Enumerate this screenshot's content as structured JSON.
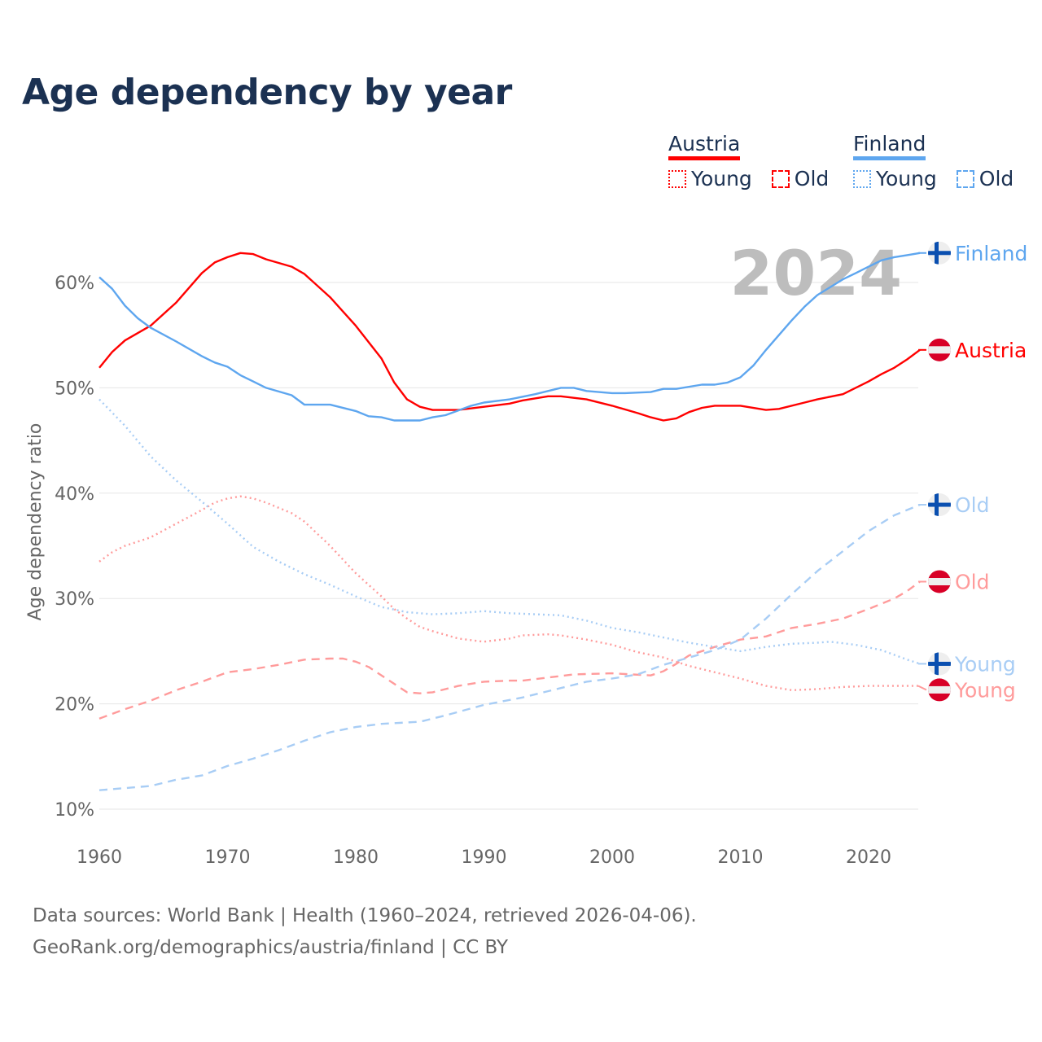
{
  "chart_data": {
    "type": "line",
    "title": "Age dependency by year",
    "xlabel": "",
    "ylabel": "Age dependency ratio",
    "xlim": [
      1960,
      2024
    ],
    "ylim": [
      10,
      62.5
    ],
    "x_ticks": [
      "1960",
      "1970",
      "1980",
      "1990",
      "2000",
      "2010",
      "2020"
    ],
    "y_ticks": [
      "10%",
      "20%",
      "30%",
      "40%",
      "50%",
      "60%"
    ],
    "grid": true,
    "year_watermark": "2024",
    "legend": {
      "placement": "top-right",
      "groups": [
        {
          "country": "Austria",
          "items": [
            "Young",
            "Old"
          ]
        },
        {
          "country": "Finland",
          "items": [
            "Young",
            "Old"
          ]
        }
      ]
    },
    "colors": {
      "austria": "#ff0000",
      "austria_light": "#ff9b9b",
      "finland": "#5ea6ef",
      "finland_light": "#a8cdf5"
    },
    "series": [
      {
        "name": "Austria",
        "country": "austria",
        "style": "solid",
        "end_label": "Austria",
        "x": [
          1960,
          1961,
          1962,
          1964,
          1966,
          1968,
          1969,
          1970,
          1971,
          1972,
          1973,
          1975,
          1976,
          1978,
          1980,
          1982,
          1983,
          1984,
          1985,
          1986,
          1988,
          1990,
          1992,
          1993,
          1995,
          1996,
          1998,
          2000,
          2002,
          2003,
          2004,
          2005,
          2006,
          2007,
          2008,
          2010,
          2012,
          2013,
          2015,
          2016,
          2018,
          2020,
          2021,
          2022,
          2023,
          2024
        ],
        "values": [
          51.9,
          53.4,
          54.5,
          55.9,
          58.1,
          60.9,
          61.9,
          62.4,
          62.8,
          62.7,
          62.2,
          61.5,
          60.8,
          58.6,
          55.9,
          52.8,
          50.5,
          48.9,
          48.2,
          47.9,
          47.9,
          48.2,
          48.5,
          48.8,
          49.2,
          49.2,
          48.9,
          48.3,
          47.6,
          47.2,
          46.9,
          47.1,
          47.7,
          48.1,
          48.3,
          48.3,
          47.9,
          48.0,
          48.6,
          48.9,
          49.4,
          50.6,
          51.3,
          51.9,
          52.7,
          53.6
        ]
      },
      {
        "name": "Finland",
        "country": "finland",
        "style": "solid",
        "end_label": "Finland",
        "x": [
          1960,
          1961,
          1962,
          1963,
          1964,
          1966,
          1968,
          1969,
          1970,
          1971,
          1972,
          1973,
          1975,
          1976,
          1978,
          1980,
          1981,
          1982,
          1983,
          1985,
          1986,
          1987,
          1989,
          1990,
          1992,
          1994,
          1996,
          1997,
          1998,
          2000,
          2001,
          2003,
          2004,
          2005,
          2007,
          2008,
          2009,
          2010,
          2011,
          2012,
          2014,
          2015,
          2016,
          2018,
          2019,
          2020,
          2021,
          2022,
          2023,
          2024
        ],
        "values": [
          60.5,
          59.4,
          57.8,
          56.6,
          55.7,
          54.4,
          53.0,
          52.4,
          52.0,
          51.2,
          50.6,
          50.0,
          49.3,
          48.4,
          48.4,
          47.8,
          47.3,
          47.2,
          46.9,
          46.9,
          47.2,
          47.4,
          48.3,
          48.6,
          48.9,
          49.4,
          50.0,
          50.0,
          49.7,
          49.5,
          49.5,
          49.6,
          49.9,
          49.9,
          50.3,
          50.3,
          50.5,
          51.0,
          52.1,
          53.6,
          56.4,
          57.7,
          58.8,
          60.3,
          60.9,
          61.5,
          62.1,
          62.4,
          62.6,
          62.8
        ]
      },
      {
        "name": "Austria Young",
        "country": "austria",
        "style": "dotted",
        "end_label": "Young",
        "x": [
          1960,
          1961,
          1962,
          1964,
          1966,
          1968,
          1969,
          1970,
          1971,
          1972,
          1973,
          1975,
          1976,
          1978,
          1980,
          1982,
          1983,
          1984,
          1985,
          1986,
          1988,
          1990,
          1992,
          1993,
          1995,
          1996,
          1998,
          2000,
          2002,
          2004,
          2006,
          2008,
          2010,
          2012,
          2014,
          2016,
          2018,
          2020,
          2022,
          2024
        ],
        "values": [
          33.5,
          34.4,
          35.0,
          35.8,
          37.1,
          38.4,
          39.1,
          39.5,
          39.7,
          39.5,
          39.1,
          38.1,
          37.3,
          35.0,
          32.4,
          30.2,
          29.0,
          28.1,
          27.3,
          26.9,
          26.2,
          25.9,
          26.2,
          26.5,
          26.6,
          26.5,
          26.1,
          25.6,
          24.9,
          24.4,
          23.6,
          23.0,
          22.4,
          21.7,
          21.3,
          21.4,
          21.6,
          21.7,
          21.7,
          21.7
        ]
      },
      {
        "name": "Austria Old",
        "country": "austria",
        "style": "dashed",
        "end_label": "Old",
        "x": [
          1960,
          1962,
          1964,
          1966,
          1968,
          1970,
          1972,
          1974,
          1976,
          1978,
          1979,
          1980,
          1981,
          1983,
          1984,
          1985,
          1986,
          1988,
          1990,
          1992,
          1993,
          1995,
          1997,
          2000,
          2003,
          2004,
          2005,
          2006,
          2008,
          2010,
          2012,
          2014,
          2016,
          2018,
          2020,
          2022,
          2023,
          2024
        ],
        "values": [
          18.6,
          19.5,
          20.3,
          21.3,
          22.1,
          23.0,
          23.3,
          23.7,
          24.2,
          24.3,
          24.3,
          24.0,
          23.5,
          21.9,
          21.1,
          21.0,
          21.1,
          21.7,
          22.1,
          22.2,
          22.2,
          22.5,
          22.8,
          22.9,
          22.7,
          23.1,
          23.8,
          24.6,
          25.4,
          26.1,
          26.4,
          27.2,
          27.6,
          28.1,
          29.0,
          30.0,
          30.7,
          31.6
        ]
      },
      {
        "name": "Finland Young",
        "country": "finland",
        "style": "dotted",
        "end_label": "Young",
        "x": [
          1960,
          1962,
          1964,
          1966,
          1968,
          1970,
          1972,
          1974,
          1976,
          1978,
          1980,
          1982,
          1984,
          1986,
          1988,
          1990,
          1992,
          1994,
          1996,
          1998,
          2000,
          2002,
          2004,
          2006,
          2008,
          2010,
          2012,
          2014,
          2016,
          2017,
          2019,
          2021,
          2023,
          2024
        ],
        "values": [
          48.9,
          46.4,
          43.5,
          41.2,
          39.2,
          37.1,
          34.9,
          33.5,
          32.3,
          31.3,
          30.2,
          29.2,
          28.7,
          28.5,
          28.6,
          28.8,
          28.6,
          28.5,
          28.4,
          27.9,
          27.2,
          26.8,
          26.3,
          25.8,
          25.4,
          25.0,
          25.4,
          25.7,
          25.8,
          25.9,
          25.6,
          25.1,
          24.2,
          23.8
        ]
      },
      {
        "name": "Finland Old",
        "country": "finland",
        "style": "dashed",
        "end_label": "Old",
        "x": [
          1960,
          1962,
          1964,
          1966,
          1968,
          1970,
          1972,
          1974,
          1976,
          1978,
          1980,
          1982,
          1985,
          1987,
          1990,
          1993,
          1996,
          1998,
          2000,
          2002,
          2004,
          2006,
          2008,
          2010,
          2012,
          2014,
          2016,
          2018,
          2020,
          2022,
          2024
        ],
        "values": [
          11.8,
          12.0,
          12.2,
          12.8,
          13.2,
          14.1,
          14.8,
          15.6,
          16.5,
          17.3,
          17.8,
          18.1,
          18.3,
          18.9,
          19.9,
          20.6,
          21.5,
          22.1,
          22.4,
          22.8,
          23.7,
          24.4,
          25.1,
          26.1,
          28.1,
          30.4,
          32.6,
          34.5,
          36.4,
          37.9,
          38.9
        ]
      }
    ]
  },
  "source": {
    "line1": "Data sources: World Bank | Health (1960–2024, retrieved 2026-04-06).",
    "line2": "GeoRank.org/demographics/austria/finland | CC BY"
  }
}
